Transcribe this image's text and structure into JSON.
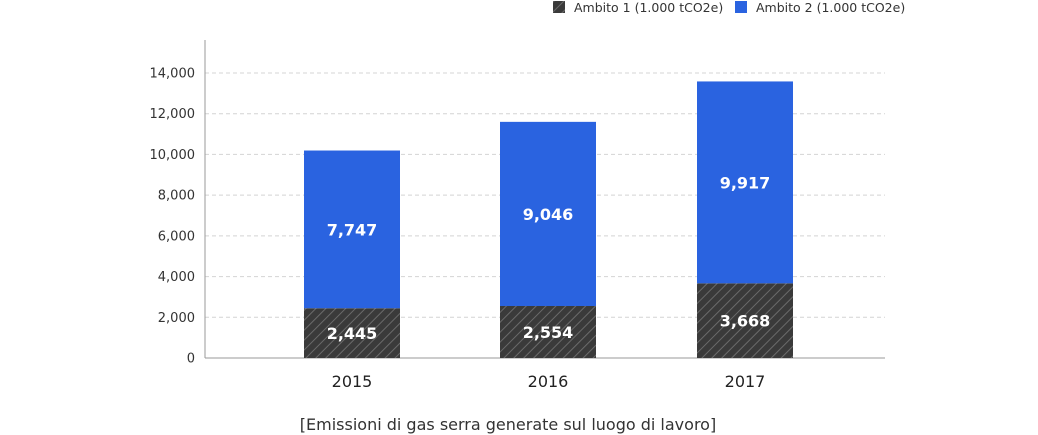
{
  "chart_data": {
    "type": "bar",
    "stacked": true,
    "categories": [
      "2015",
      "2016",
      "2017"
    ],
    "series": [
      {
        "name": "Ambito 1 (1.000 tCO2e)",
        "values": [
          2445,
          2554,
          3668
        ],
        "value_labels": [
          "2,445",
          "2,554",
          "3,668"
        ],
        "color": "#3a3a3a",
        "pattern": "diagonal-hatch"
      },
      {
        "name": "Ambito 2 (1.000 tCO2e)",
        "values": [
          7747,
          9046,
          9917
        ],
        "value_labels": [
          "7,747",
          "9,046",
          "9,917"
        ],
        "color": "#2a63e0",
        "pattern": "solid"
      }
    ],
    "ylim": [
      0,
      14000
    ],
    "yticks": [
      0,
      2000,
      4000,
      6000,
      8000,
      10000,
      12000,
      14000
    ],
    "ytick_labels": [
      "0",
      "2,000",
      "4,000",
      "6,000",
      "8,000",
      "10,000",
      "12,000",
      "14,000"
    ],
    "grid": true,
    "grid_style": "dashed",
    "legend_position": "top-right",
    "caption": "[Emissioni di gas serra generate sul luogo di lavoro]"
  }
}
